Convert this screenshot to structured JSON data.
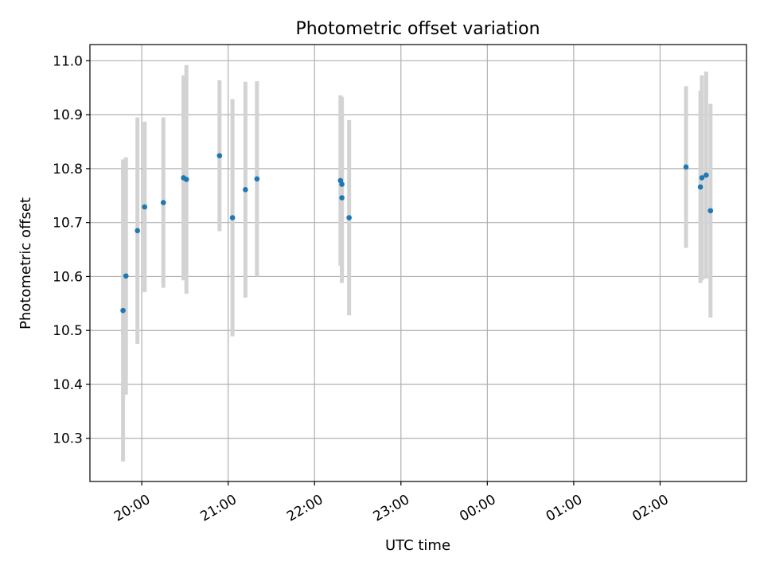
{
  "chart_data": {
    "type": "scatter",
    "title": "Photometric offset variation",
    "xlabel": "UTC time",
    "ylabel": "Photometric offset",
    "x_tick_labels": [
      "20:00",
      "21:00",
      "22:00",
      "23:00",
      "00:00",
      "01:00",
      "02:00"
    ],
    "y_tick_labels": [
      "10.3",
      "10.4",
      "10.5",
      "10.6",
      "10.7",
      "10.8",
      "10.9",
      "11.0"
    ],
    "grid": true,
    "series": [
      {
        "color": "#1f77b4",
        "error_bar_color": "#d3d3d3",
        "points": [
          {
            "x": "19:47",
            "y": 10.537,
            "err": 0.28
          },
          {
            "x": "19:49",
            "y": 10.601,
            "err": 0.22
          },
          {
            "x": "19:57",
            "y": 10.685,
            "err": 0.21
          },
          {
            "x": "20:02",
            "y": 10.729,
            "err": 0.158
          },
          {
            "x": "20:15",
            "y": 10.737,
            "err": 0.158
          },
          {
            "x": "20:29",
            "y": 10.783,
            "err": 0.19
          },
          {
            "x": "20:31",
            "y": 10.78,
            "err": 0.212
          },
          {
            "x": "20:54",
            "y": 10.824,
            "err": 0.14
          },
          {
            "x": "21:03",
            "y": 10.709,
            "err": 0.22
          },
          {
            "x": "21:12",
            "y": 10.761,
            "err": 0.2
          },
          {
            "x": "21:20",
            "y": 10.781,
            "err": 0.181
          },
          {
            "x": "22:18",
            "y": 10.778,
            "err": 0.158
          },
          {
            "x": "22:19",
            "y": 10.771,
            "err": 0.162
          },
          {
            "x": "22:19",
            "y": 10.746,
            "err": 0.158
          },
          {
            "x": "22:24",
            "y": 10.709,
            "err": 0.181
          },
          {
            "x": "02:18",
            "y": 10.803,
            "err": 0.15
          },
          {
            "x": "02:28",
            "y": 10.766,
            "err": 0.178
          },
          {
            "x": "02:29",
            "y": 10.783,
            "err": 0.19
          },
          {
            "x": "02:32",
            "y": 10.788,
            "err": 0.192
          },
          {
            "x": "02:35",
            "y": 10.722,
            "err": 0.198
          }
        ]
      }
    ],
    "xlim": [
      "19:24",
      "03:00"
    ],
    "ylim": [
      10.22,
      11.03
    ]
  }
}
